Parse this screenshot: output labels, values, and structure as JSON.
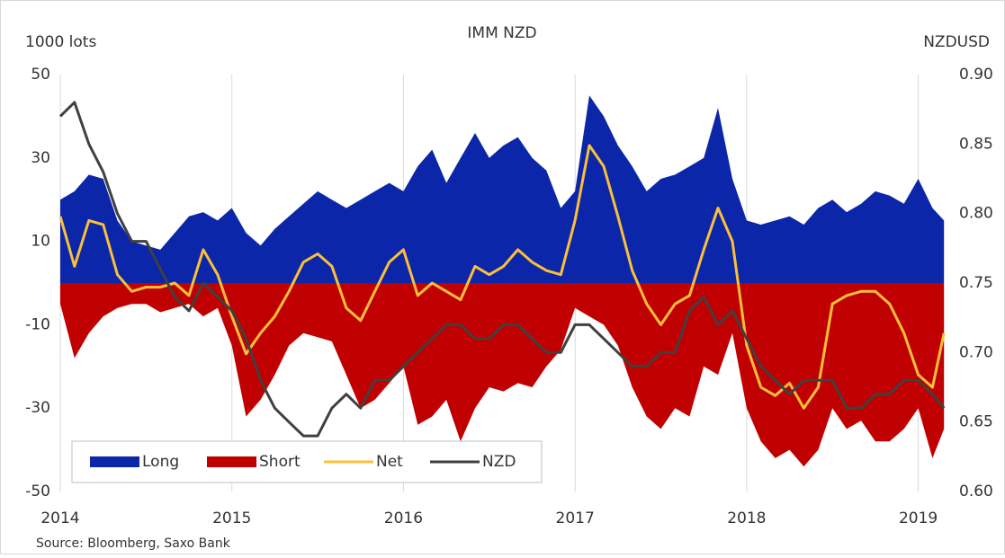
{
  "chart_data": {
    "type": "area",
    "title": "IMM NZD",
    "y_label": "1000 lots",
    "y2_label": "NZDUSD",
    "source": "Source: Bloomberg,  Saxo Bank",
    "x": [
      2014,
      2014.083,
      2014.167,
      2014.25,
      2014.333,
      2014.417,
      2014.5,
      2014.583,
      2014.667,
      2014.75,
      2014.833,
      2014.917,
      2015,
      2015.083,
      2015.167,
      2015.25,
      2015.333,
      2015.417,
      2015.5,
      2015.583,
      2015.667,
      2015.75,
      2015.833,
      2015.917,
      2016,
      2016.083,
      2016.167,
      2016.25,
      2016.333,
      2016.417,
      2016.5,
      2016.583,
      2016.667,
      2016.75,
      2016.833,
      2016.917,
      2017,
      2017.083,
      2017.167,
      2017.25,
      2017.333,
      2017.417,
      2017.5,
      2017.583,
      2017.667,
      2017.75,
      2017.833,
      2017.917,
      2018,
      2018.083,
      2018.167,
      2018.25,
      2018.333,
      2018.417,
      2018.5,
      2018.583,
      2018.667,
      2018.75,
      2018.833,
      2018.917,
      2019,
      2019.083,
      2019.15
    ],
    "series": [
      {
        "name": "Long",
        "type": "area",
        "color": "#0b26a8",
        "values": [
          20,
          22,
          26,
          25,
          15,
          10,
          9,
          8,
          12,
          16,
          17,
          15,
          18,
          12,
          9,
          13,
          16,
          19,
          22,
          20,
          18,
          20,
          22,
          24,
          22,
          28,
          32,
          24,
          30,
          36,
          30,
          33,
          35,
          30,
          27,
          18,
          22,
          45,
          40,
          33,
          28,
          22,
          25,
          26,
          28,
          30,
          42,
          25,
          15,
          14,
          15,
          16,
          14,
          18,
          20,
          17,
          19,
          22,
          21,
          19,
          25,
          18,
          15
        ]
      },
      {
        "name": "Short",
        "type": "area",
        "color": "#c00000",
        "values": [
          -5,
          -18,
          -12,
          -8,
          -6,
          -5,
          -5,
          -7,
          -6,
          -5,
          -8,
          -6,
          -15,
          -32,
          -28,
          -22,
          -15,
          -12,
          -13,
          -14,
          -22,
          -30,
          -28,
          -24,
          -20,
          -34,
          -32,
          -28,
          -38,
          -30,
          -25,
          -26,
          -24,
          -25,
          -20,
          -16,
          -6,
          -8,
          -10,
          -15,
          -25,
          -32,
          -35,
          -30,
          -32,
          -20,
          -22,
          -12,
          -30,
          -38,
          -42,
          -40,
          -44,
          -40,
          -30,
          -35,
          -33,
          -38,
          -38,
          -35,
          -30,
          -42,
          -35
        ]
      },
      {
        "name": "Net",
        "type": "line",
        "color": "#fcbf3a",
        "values": [
          16,
          4,
          15,
          14,
          2,
          -2,
          -1,
          -1,
          0,
          -3,
          8,
          2,
          -8,
          -17,
          -12,
          -8,
          -2,
          5,
          7,
          4,
          -6,
          -9,
          -2,
          5,
          8,
          -3,
          0,
          -2,
          -4,
          4,
          2,
          4,
          8,
          5,
          3,
          2,
          15,
          33,
          28,
          16,
          3,
          -5,
          -10,
          -5,
          -3,
          8,
          18,
          10,
          -15,
          -25,
          -27,
          -24,
          -30,
          -25,
          -5,
          -3,
          -2,
          -2,
          -5,
          -12,
          -22,
          -25,
          -12
        ]
      },
      {
        "name": "NZD",
        "type": "line",
        "axis": "y2",
        "color": "#404040",
        "values": [
          0.87,
          0.88,
          0.85,
          0.83,
          0.8,
          0.78,
          0.78,
          0.76,
          0.74,
          0.73,
          0.75,
          0.74,
          0.73,
          0.71,
          0.68,
          0.66,
          0.65,
          0.64,
          0.64,
          0.66,
          0.67,
          0.66,
          0.68,
          0.68,
          0.69,
          0.7,
          0.71,
          0.72,
          0.72,
          0.71,
          0.71,
          0.72,
          0.72,
          0.71,
          0.7,
          0.7,
          0.72,
          0.72,
          0.71,
          0.7,
          0.69,
          0.69,
          0.7,
          0.7,
          0.73,
          0.74,
          0.72,
          0.73,
          0.71,
          0.69,
          0.68,
          0.67,
          0.68,
          0.68,
          0.68,
          0.66,
          0.66,
          0.67,
          0.67,
          0.68,
          0.68,
          0.67,
          0.66
        ]
      }
    ],
    "xlim": [
      2014,
      2019.17
    ],
    "xticks": [
      2014,
      2015,
      2016,
      2017,
      2018,
      2019
    ],
    "ylim": [
      -50,
      50
    ],
    "yticks": [
      50,
      30,
      10,
      -10,
      -30,
      -50
    ],
    "y2lim": [
      0.6,
      0.9
    ],
    "y2ticks": [
      {
        "value": 0.9,
        "label": "0.90"
      },
      0.85,
      {
        "value": 0.8,
        "label": "0.80"
      },
      0.75,
      {
        "value": 0.7,
        "label": "0.70"
      },
      0.65,
      {
        "value": 0.6,
        "label": "0.60"
      }
    ],
    "grid": "x",
    "legend": "lower left"
  }
}
